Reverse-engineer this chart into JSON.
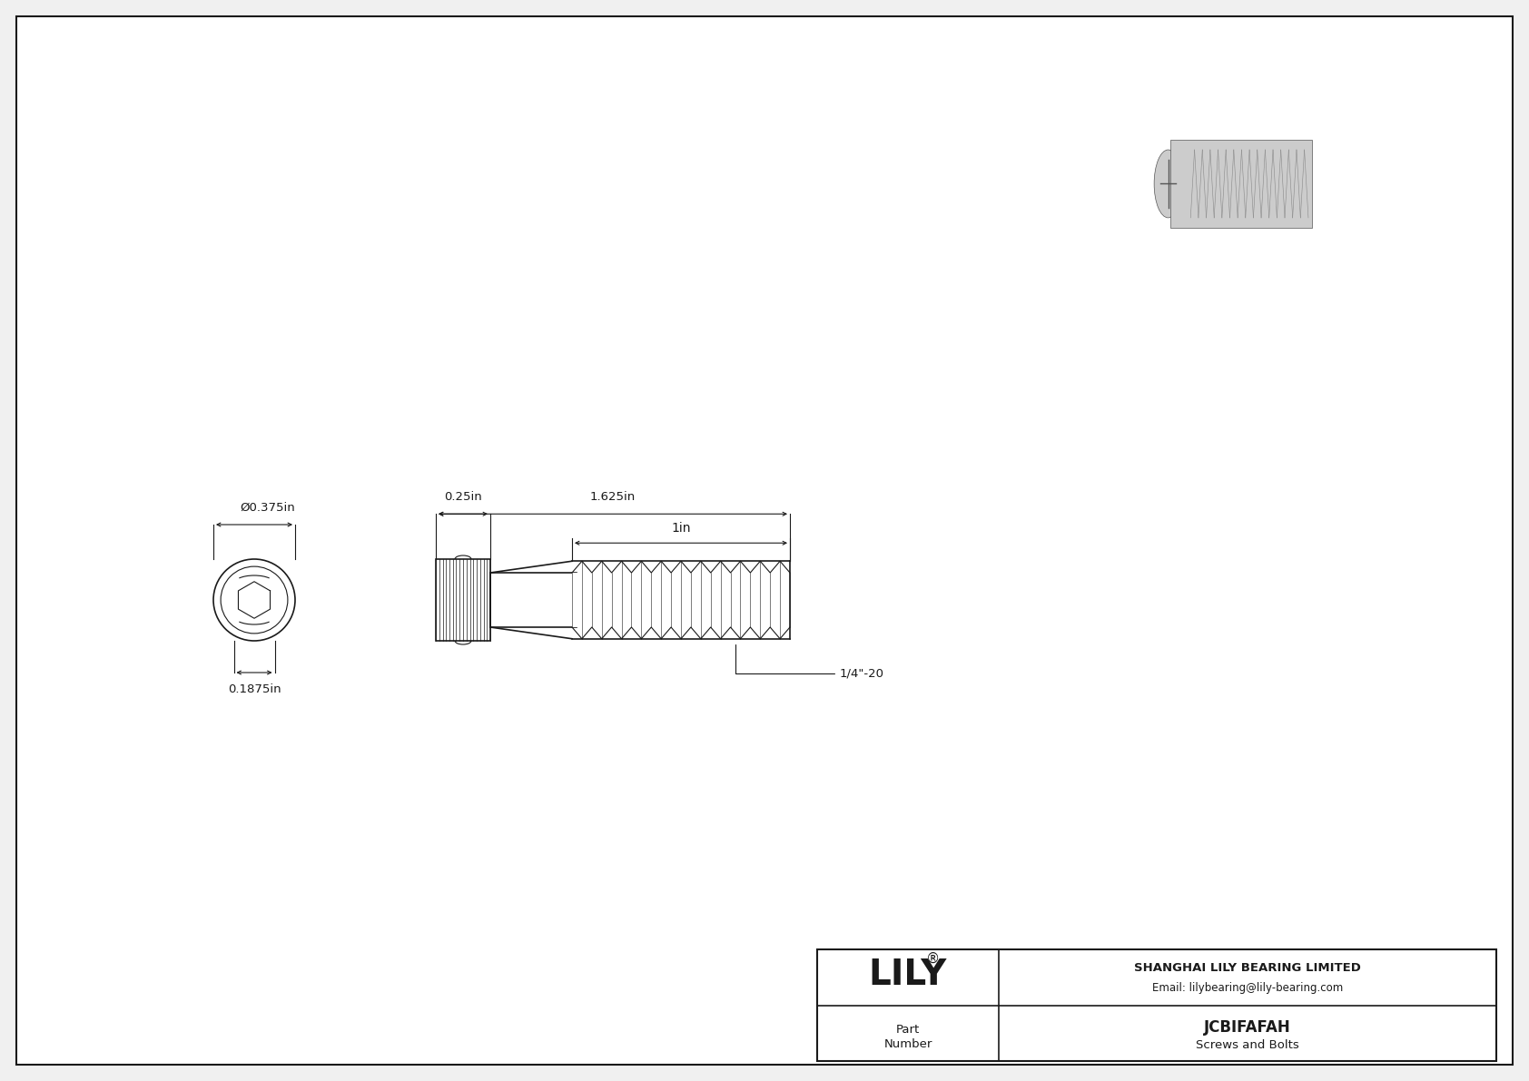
{
  "bg_color": "#f0f0f0",
  "drawing_bg": "#ffffff",
  "line_color": "#1a1a1a",
  "dim_color": "#1a1a1a",
  "title_company": "SHANGHAI LILY BEARING LIMITED",
  "title_email": "Email: lilybearing@lily-bearing.com",
  "part_number": "JCBIFAFAH",
  "part_category": "Screws and Bolts",
  "logo_text": "LILY",
  "logo_super": "®",
  "dim_head_diameter": "Ø0.375in",
  "dim_head_height": "0.1875in",
  "dim_head_length": "0.25in",
  "dim_total_length": "1.625in",
  "dim_thread_length": "1in",
  "dim_thread_spec": "1/4\"-20"
}
